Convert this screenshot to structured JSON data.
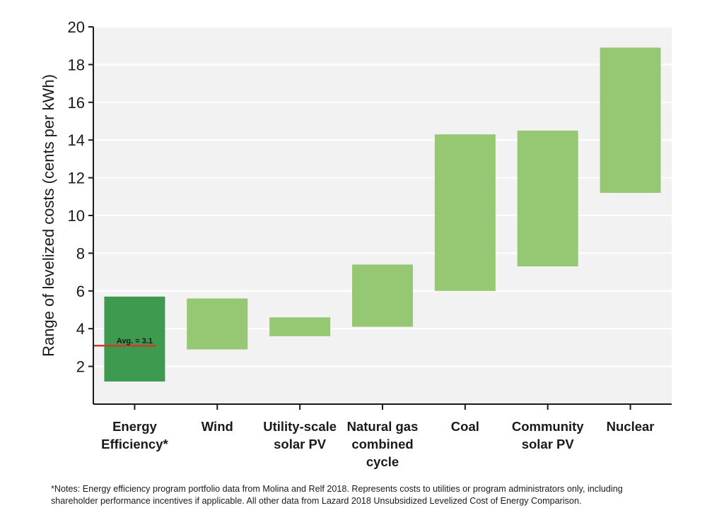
{
  "chart_data": {
    "type": "floating-bar",
    "ylabel": "Range of levelized costs (cents per kWh)",
    "ylim": [
      0,
      20
    ],
    "yticks": [
      2,
      4,
      6,
      8,
      10,
      12,
      14,
      16,
      18,
      20
    ],
    "grid": true,
    "categories": [
      [
        "Energy",
        "Efficiency*"
      ],
      [
        "Wind"
      ],
      [
        "Utility-scale",
        "solar PV"
      ],
      [
        "Natural gas",
        "combined",
        "cycle"
      ],
      [
        "Coal"
      ],
      [
        "Community",
        "solar PV"
      ],
      [
        "Nuclear"
      ]
    ],
    "ranges": [
      [
        1.2,
        5.7
      ],
      [
        2.9,
        5.6
      ],
      [
        3.6,
        4.6
      ],
      [
        4.1,
        7.4
      ],
      [
        6.0,
        14.3
      ],
      [
        7.3,
        14.5
      ],
      [
        11.2,
        18.9
      ]
    ],
    "highlight_index": 0,
    "colors": {
      "highlight": "#3d9a4e",
      "bar": "#96c873",
      "avg_line": "#d03a2a",
      "grid": "#e6e6e6",
      "axis": "#1a1a1a"
    },
    "average": {
      "category_index": 0,
      "value": 3.1,
      "label": "Avg. = 3.1"
    }
  },
  "notes": {
    "line1": "*Notes: Energy efficiency program portfolio data from Molina and Relf 2018. Represents costs to utilities or program administrators only, including",
    "line2": "shareholder performance incentives if applicable. All other data from Lazard 2018 Unsubsidized Levelized Cost of Energy Comparison."
  }
}
